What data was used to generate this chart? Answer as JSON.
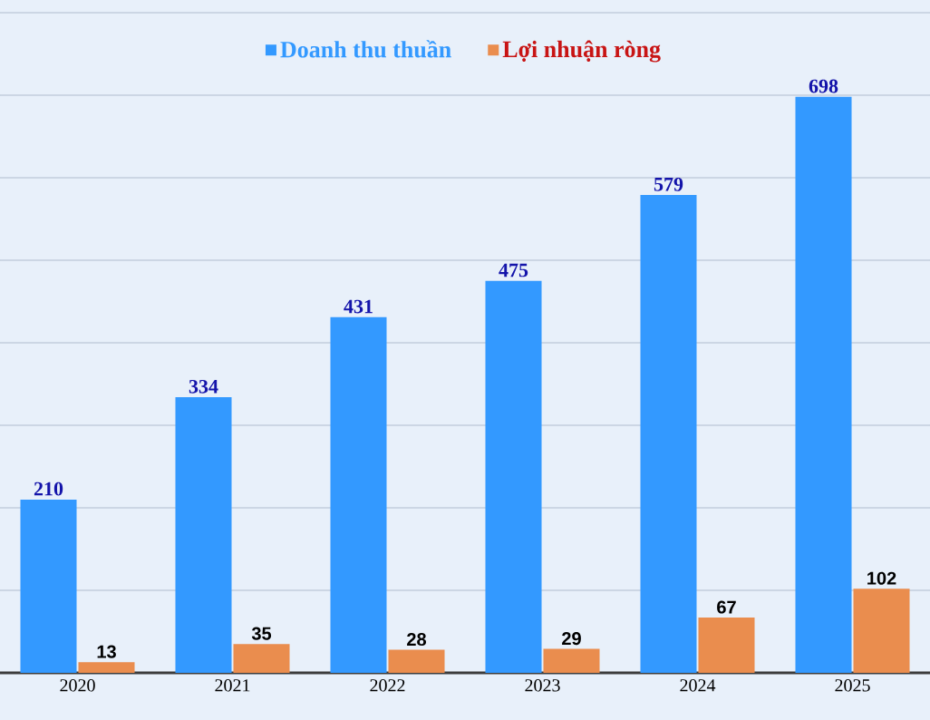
{
  "chart_data": {
    "type": "bar",
    "categories": [
      "2020",
      "2021",
      "2022",
      "2023",
      "2024",
      "2025"
    ],
    "series": [
      {
        "name": "Doanh thu thuần",
        "color": "#3399ff",
        "values": [
          210,
          334,
          431,
          475,
          579,
          698
        ]
      },
      {
        "name": "Lợi nhuận ròng",
        "color": "#ea8d4e",
        "values": [
          13,
          35,
          28,
          29,
          67,
          102
        ]
      }
    ],
    "ylim": [
      0,
      800
    ],
    "yticks": [
      {
        "value": 0,
        "label": null
      },
      {
        "value": 100,
        "label": null
      },
      {
        "value": 200,
        "label": null
      },
      {
        "value": 300,
        "label": null
      },
      {
        "value": 400,
        "label": null
      },
      {
        "value": 500,
        "label": null
      },
      {
        "value": 600,
        "label": null
      },
      {
        "value": 700,
        "label": null
      },
      {
        "value": 800,
        "label": null
      }
    ],
    "tick_labels": "x",
    "grid": "y",
    "legend": "top",
    "data_labels": true
  }
}
